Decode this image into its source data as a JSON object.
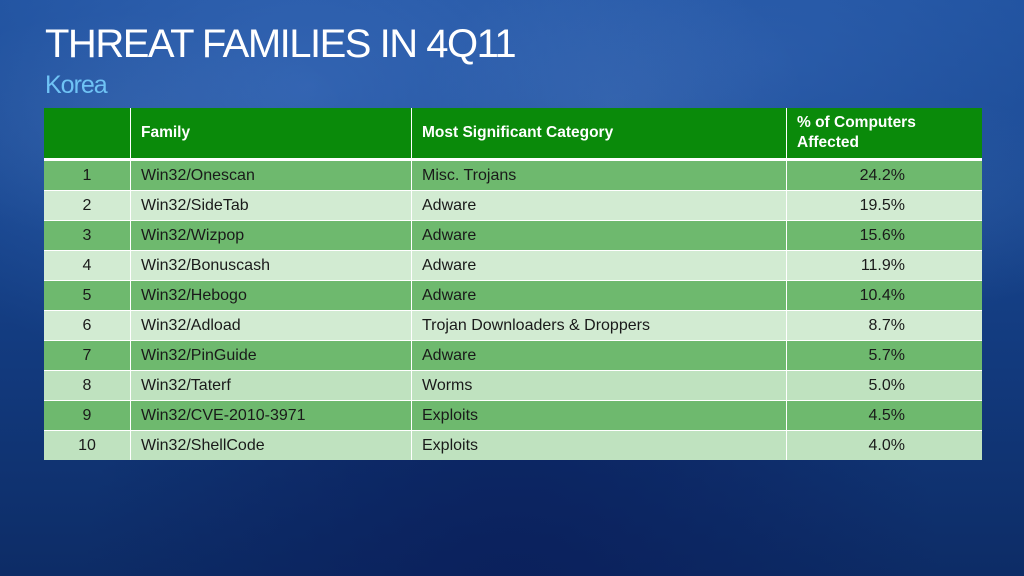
{
  "slide": {
    "title": "THREAT FAMILIES IN 4Q11",
    "subtitle": "Korea"
  },
  "table": {
    "headers": [
      "",
      "Family",
      "Most Significant Category",
      "% of Computers Affected"
    ],
    "rows": [
      {
        "rank": "1",
        "family": "Win32/Onescan",
        "category": "Misc. Trojans",
        "percent": "24.2%"
      },
      {
        "rank": "2",
        "family": "Win32/SideTab",
        "category": "Adware",
        "percent": "19.5%"
      },
      {
        "rank": "3",
        "family": "Win32/Wizpop",
        "category": "Adware",
        "percent": "15.6%"
      },
      {
        "rank": "4",
        "family": "Win32/Bonuscash",
        "category": "Adware",
        "percent": "11.9%"
      },
      {
        "rank": "5",
        "family": "Win32/Hebogo",
        "category": "Adware",
        "percent": "10.4%"
      },
      {
        "rank": "6",
        "family": "Win32/Adload",
        "category": "Trojan Downloaders & Droppers",
        "percent": "8.7%"
      },
      {
        "rank": "7",
        "family": "Win32/PinGuide",
        "category": "Adware",
        "percent": "5.7%"
      },
      {
        "rank": "8",
        "family": "Win32/Taterf",
        "category": "Worms",
        "percent": "5.0%"
      },
      {
        "rank": "9",
        "family": "Win32/CVE-2010-3971",
        "category": "Exploits",
        "percent": "4.5%"
      },
      {
        "rank": "10",
        "family": "Win32/ShellCode",
        "category": "Exploits",
        "percent": "4.0%"
      }
    ]
  },
  "colors": {
    "header_green": "#0a8a0a",
    "row_dark": "#80c480",
    "row_light": "#d2ebd2",
    "subtitle_blue": "#6fc3f5"
  }
}
